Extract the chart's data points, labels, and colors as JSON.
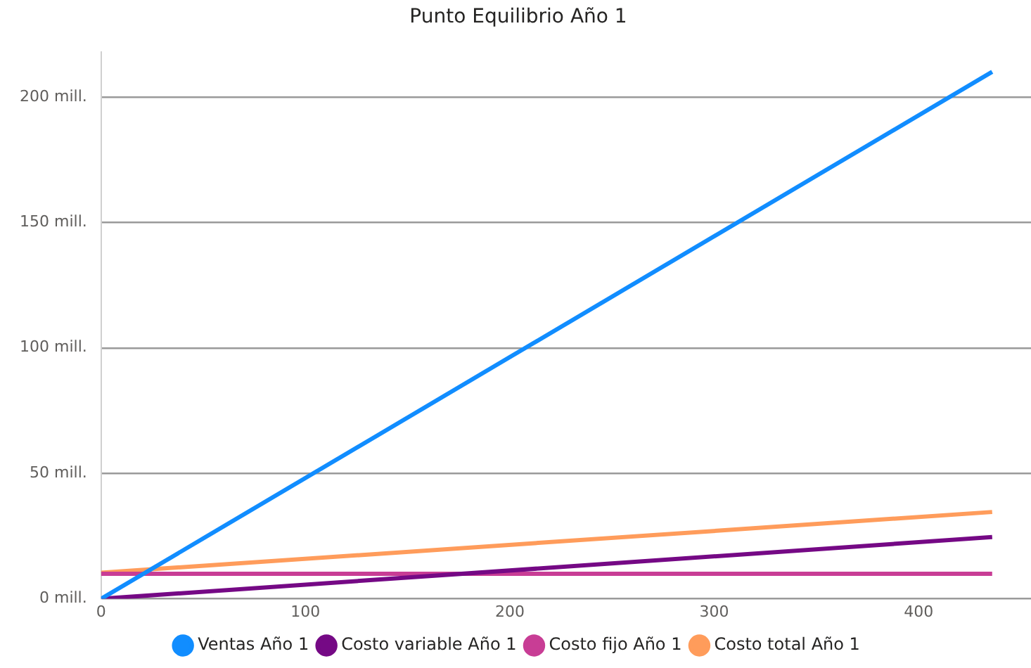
{
  "chart_data": {
    "type": "line",
    "title": "Punto Equilibrio Año 1",
    "x": [
      0,
      436
    ],
    "series": [
      {
        "name": "Ventas Año 1",
        "color": "#118dff",
        "values": [
          0,
          210
        ]
      },
      {
        "name": "Costo variable Año 1",
        "color": "#750985",
        "values": [
          0,
          24.6
        ]
      },
      {
        "name": "Costo fijo Año 1",
        "color": "#c83d95",
        "values": [
          10,
          10
        ]
      },
      {
        "name": "Costo total Año 1",
        "color": "#ff9c5b",
        "values": [
          10.4,
          34.6
        ]
      }
    ],
    "xlim": [
      0,
      455
    ],
    "xticks": [
      0,
      100,
      200,
      300,
      400
    ],
    "ylim": [
      0,
      218
    ],
    "yticks": [
      {
        "value": 0,
        "label": "0 mill."
      },
      {
        "value": 50,
        "label": "50 mill."
      },
      {
        "value": 100,
        "label": "100 mill."
      },
      {
        "value": 150,
        "label": "150 mill."
      },
      {
        "value": 200,
        "label": "200 mill."
      }
    ],
    "grid": "y",
    "line_style": "solid",
    "marker": "none",
    "legend": "bottom"
  }
}
